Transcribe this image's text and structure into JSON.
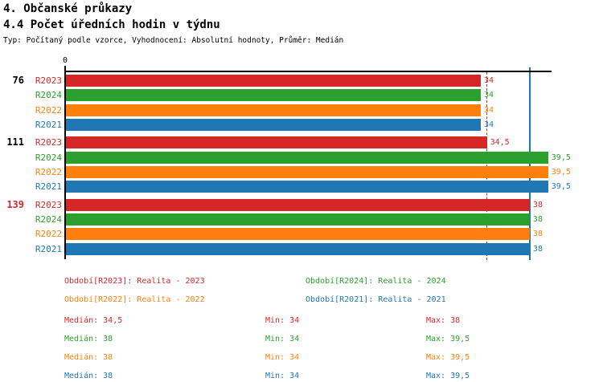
{
  "header": {
    "section_title": "4. Občanské průkazy",
    "subsection_title": "4.4 Počet úředních hodin v týdnu",
    "meta": "Typ: Počítaný podle vzorce, Vyhodnocení: Absolutní hodnoty, Průměr: Medián"
  },
  "colors": {
    "R2023": "#d62728",
    "R2024": "#2ca02c",
    "R2022": "#ff7f0e",
    "R2021": "#1f77b4",
    "axis": "#000000",
    "highlight": "#d62728"
  },
  "chart_data": {
    "type": "bar",
    "orientation": "horizontal",
    "value_axis": {
      "zero_label": "0",
      "min": 0,
      "max": 39.8,
      "position": "top"
    },
    "series_order": [
      "R2023",
      "R2024",
      "R2022",
      "R2021"
    ],
    "groups": [
      {
        "label": "76",
        "highlighted": false,
        "bars": [
          {
            "series": "R2023",
            "value": 34,
            "display": "34"
          },
          {
            "series": "R2024",
            "value": 34,
            "display": "34"
          },
          {
            "series": "R2022",
            "value": 34,
            "display": "34"
          },
          {
            "series": "R2021",
            "value": 34,
            "display": "34"
          }
        ]
      },
      {
        "label": "111",
        "highlighted": false,
        "bars": [
          {
            "series": "R2023",
            "value": 34.5,
            "display": "34,5"
          },
          {
            "series": "R2024",
            "value": 39.5,
            "display": "39,5"
          },
          {
            "series": "R2022",
            "value": 39.5,
            "display": "39,5"
          },
          {
            "series": "R2021",
            "value": 39.5,
            "display": "39,5"
          }
        ]
      },
      {
        "label": "139",
        "highlighted": true,
        "bars": [
          {
            "series": "R2023",
            "value": 38,
            "display": "38"
          },
          {
            "series": "R2024",
            "value": 38,
            "display": "38"
          },
          {
            "series": "R2022",
            "value": 38,
            "display": "38"
          },
          {
            "series": "R2021",
            "value": 38,
            "display": "38"
          }
        ]
      }
    ],
    "reference_lines": [
      {
        "series": "R2023",
        "value": 34.5,
        "style": "dashed",
        "color": "#d62728"
      },
      {
        "series": "R2021",
        "value": 38,
        "style": "solid",
        "color": "#1f77b4"
      }
    ],
    "series_stats": [
      {
        "name": "R2023",
        "median": 34.5,
        "min": 34,
        "max": 38
      },
      {
        "name": "R2024",
        "median": 38,
        "min": 34,
        "max": 39.5
      },
      {
        "name": "R2022",
        "median": 38,
        "min": 34,
        "max": 39.5
      },
      {
        "name": "R2021",
        "median": 38,
        "min": 34,
        "max": 39.5
      }
    ]
  },
  "legend": {
    "items": [
      {
        "series": "R2023",
        "label": "Období[R2023]: Realita - 2023"
      },
      {
        "series": "R2024",
        "label": "Období[R2024]: Realita - 2024"
      },
      {
        "series": "R2022",
        "label": "Období[R2022]: Realita - 2022"
      },
      {
        "series": "R2021",
        "label": "Období[R2021]: Realita - 2021"
      }
    ]
  },
  "stats": {
    "rows": [
      {
        "series": "R2023",
        "median": "Medián: 34,5",
        "min": "Min: 34",
        "max": "Max: 38"
      },
      {
        "series": "R2024",
        "median": "Medián: 38",
        "min": "Min: 34",
        "max": "Max: 39,5"
      },
      {
        "series": "R2022",
        "median": "Medián: 38",
        "min": "Min: 34",
        "max": "Max: 39,5"
      },
      {
        "series": "R2021",
        "median": "Medián: 38",
        "min": "Min: 34",
        "max": "Max: 39,5"
      }
    ]
  }
}
